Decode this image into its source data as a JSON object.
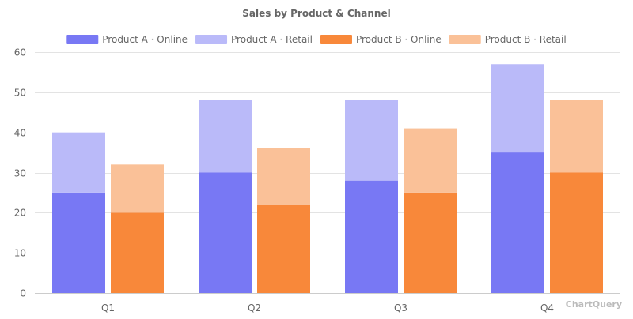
{
  "chart_data": {
    "type": "bar",
    "stacked": true,
    "title": "Sales by Product & Channel",
    "categories": [
      "Q1",
      "Q2",
      "Q3",
      "Q4"
    ],
    "series": [
      {
        "name": "Product A · Online",
        "stack": "Product A",
        "color": "#7878f4",
        "values": [
          25,
          30,
          28,
          35
        ]
      },
      {
        "name": "Product A · Retail",
        "stack": "Product A",
        "color": "#babaf9",
        "values": [
          15,
          18,
          20,
          22
        ]
      },
      {
        "name": "Product B · Online",
        "stack": "Product B",
        "color": "#f8883a",
        "values": [
          20,
          22,
          25,
          30
        ]
      },
      {
        "name": "Product B · Retail",
        "stack": "Product B",
        "color": "#fac198",
        "values": [
          12,
          14,
          16,
          18
        ]
      }
    ],
    "ylim": [
      0,
      60
    ],
    "yticks": [
      0,
      10,
      20,
      30,
      40,
      50,
      60
    ],
    "xlabel": "",
    "ylabel": "",
    "grid": true,
    "legend": "top-center"
  },
  "watermark": "ChartQuery"
}
